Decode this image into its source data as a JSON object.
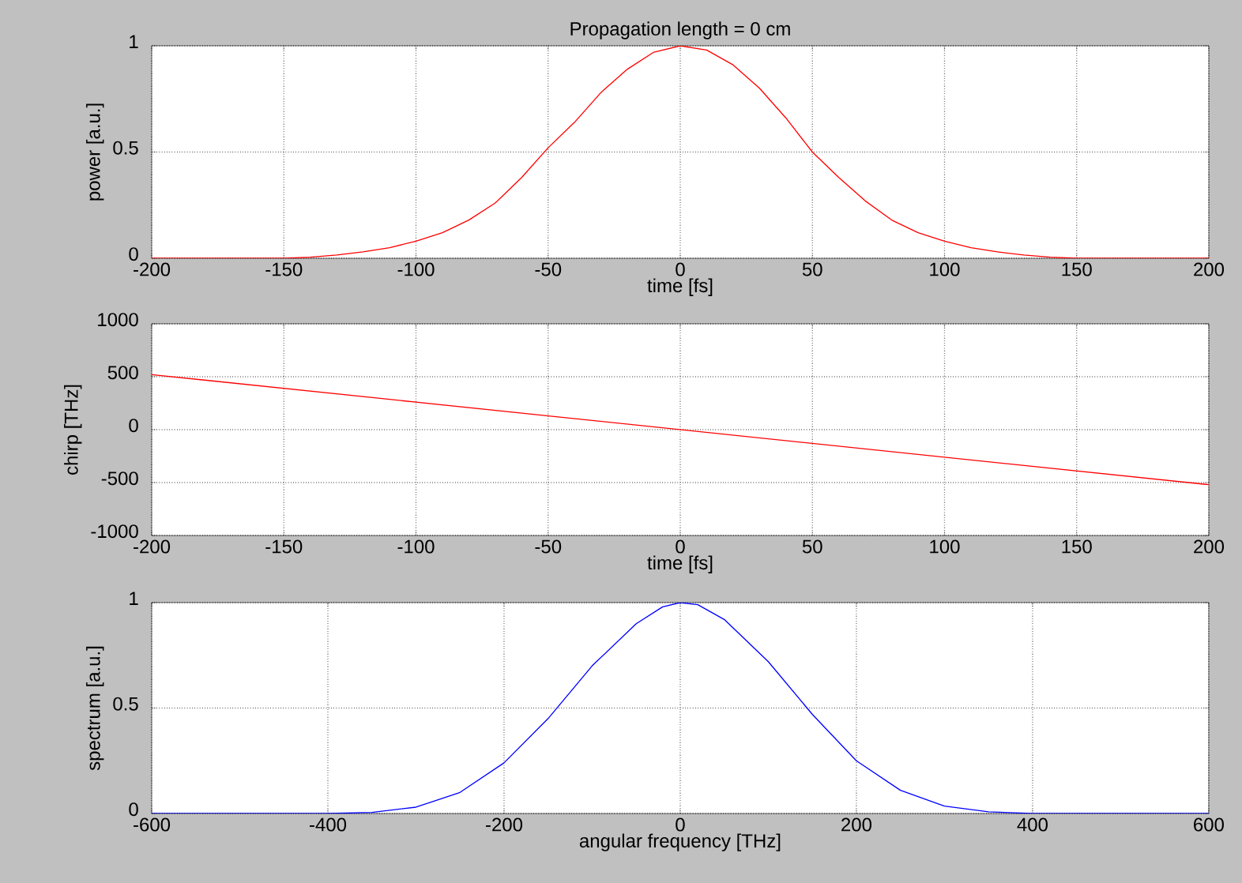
{
  "chart_data": [
    {
      "type": "line",
      "title": "Propagation length = 0 cm",
      "xlabel": "time [fs]",
      "ylabel": "power [a.u.]",
      "xlim": [
        -200,
        200
      ],
      "xticks": [
        -200,
        -150,
        -100,
        -50,
        0,
        50,
        100,
        150,
        200
      ],
      "ylim": [
        0,
        1
      ],
      "yticks": [
        0,
        0.5,
        1
      ],
      "grid": true,
      "x": [
        -200,
        -150,
        -140,
        -130,
        -120,
        -110,
        -100,
        -90,
        -80,
        -70,
        -60,
        -50,
        -40,
        -30,
        -20,
        -10,
        0,
        10,
        20,
        30,
        40,
        50,
        60,
        70,
        80,
        90,
        100,
        110,
        120,
        130,
        140,
        150,
        200
      ],
      "series": [
        {
          "color": "#ff0000",
          "values": [
            0,
            0,
            0.005,
            0.015,
            0.03,
            0.05,
            0.08,
            0.12,
            0.18,
            0.26,
            0.38,
            0.52,
            0.64,
            0.78,
            0.89,
            0.97,
            1.0,
            0.98,
            0.91,
            0.8,
            0.66,
            0.5,
            0.38,
            0.27,
            0.18,
            0.12,
            0.08,
            0.05,
            0.03,
            0.015,
            0.005,
            0,
            0
          ]
        }
      ]
    },
    {
      "type": "line",
      "xlabel": "time [fs]",
      "ylabel": "chirp [THz]",
      "xlim": [
        -200,
        200
      ],
      "xticks": [
        -200,
        -150,
        -100,
        -50,
        0,
        50,
        100,
        150,
        200
      ],
      "ylim": [
        -1000,
        1000
      ],
      "yticks": [
        -1000,
        -500,
        0,
        500,
        1000
      ],
      "grid": true,
      "x": [
        -200,
        200
      ],
      "series": [
        {
          "color": "#ff0000",
          "values": [
            520,
            -520
          ]
        }
      ]
    },
    {
      "type": "line",
      "xlabel": "angular frequency [THz]",
      "ylabel": "spectrum [a.u.]",
      "xlim": [
        -600,
        600
      ],
      "xticks": [
        -600,
        -400,
        -200,
        0,
        200,
        400,
        600
      ],
      "ylim": [
        0,
        1
      ],
      "yticks": [
        0,
        0.5,
        1
      ],
      "grid": true,
      "x": [
        -600,
        -400,
        -350,
        -300,
        -250,
        -200,
        -150,
        -100,
        -50,
        -20,
        0,
        20,
        50,
        100,
        150,
        200,
        250,
        300,
        350,
        400,
        600
      ],
      "series": [
        {
          "color": "#0000ff",
          "values": [
            0,
            0,
            0.005,
            0.03,
            0.1,
            0.24,
            0.45,
            0.7,
            0.9,
            0.98,
            1.0,
            0.99,
            0.92,
            0.72,
            0.47,
            0.25,
            0.11,
            0.035,
            0.008,
            0,
            0
          ]
        }
      ]
    }
  ]
}
